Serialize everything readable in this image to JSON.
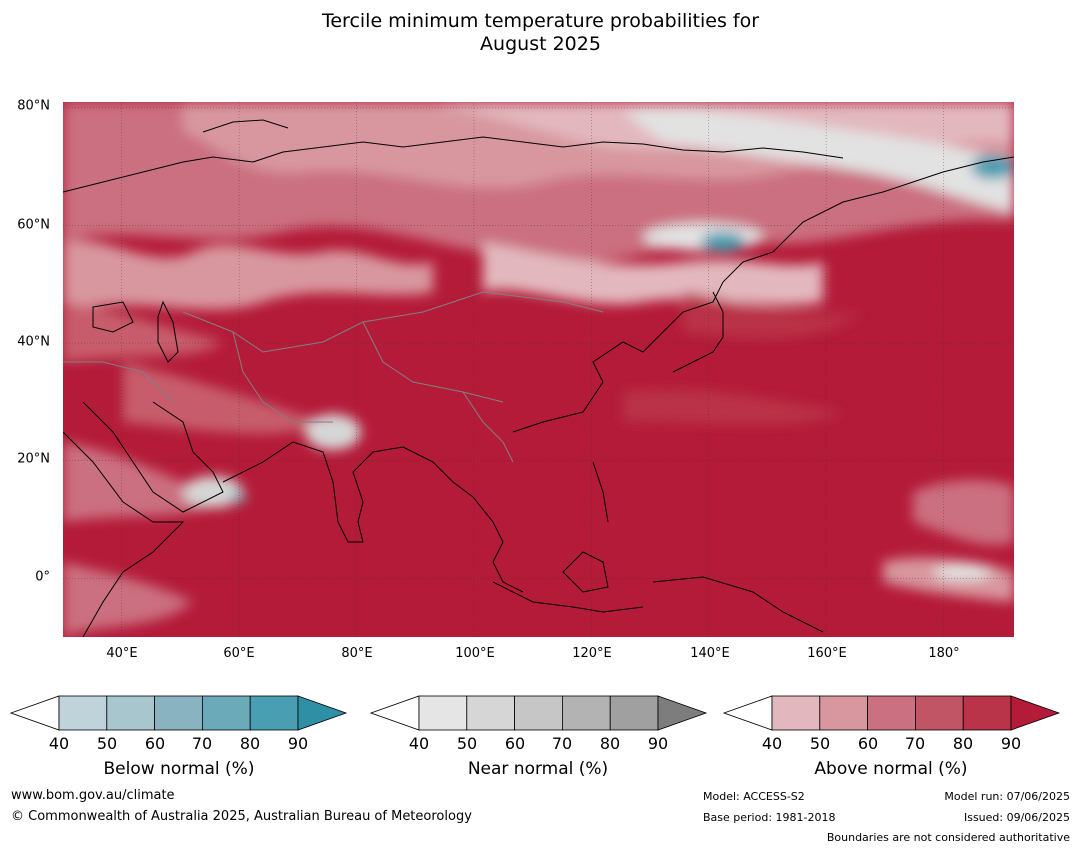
{
  "title": {
    "line1": "Tercile minimum temperature probabilities for",
    "line2": "August 2025"
  },
  "map": {
    "lat_labels": [
      "80°N",
      "60°N",
      "40°N",
      "20°N",
      "0°"
    ],
    "lon_labels": [
      "40°E",
      "60°E",
      "80°E",
      "100°E",
      "120°E",
      "140°E",
      "160°E",
      "180°"
    ],
    "extent": {
      "lon": [
        30,
        192
      ],
      "lat": [
        -10,
        81
      ]
    },
    "colors": {
      "above_90": "#b41b39",
      "above_80": "#ba3146",
      "above_70": "#c75d6c",
      "above_60": "#cb7080",
      "above_50": "#d8979f",
      "above_40": "#e2b8be",
      "near": "#e2e2e2",
      "below_60": "#8ab3c1",
      "below_80": "#4a9eb1",
      "coast": "#000000",
      "border": "#808080"
    }
  },
  "colorbars": [
    {
      "label": "Below normal (%)",
      "ticks": [
        "40",
        "50",
        "60",
        "70",
        "80",
        "90"
      ],
      "colors": [
        "#bfd3da",
        "#a7c6cd",
        "#8ab3c1",
        "#6babb9",
        "#4a9eb1",
        "#2f8fa4"
      ]
    },
    {
      "label": "Near normal (%)",
      "ticks": [
        "40",
        "50",
        "60",
        "70",
        "80",
        "90"
      ],
      "colors": [
        "#e5e5e5",
        "#d6d6d6",
        "#c6c6c6",
        "#b3b3b3",
        "#a0a0a0",
        "#7d7d7d"
      ]
    },
    {
      "label": "Above normal (%)",
      "ticks": [
        "40",
        "50",
        "60",
        "70",
        "80",
        "90"
      ],
      "colors": [
        "#e2b8be",
        "#d8979f",
        "#cb7080",
        "#c25565",
        "#b93349",
        "#b41b39"
      ]
    }
  ],
  "footer": {
    "website": "www.bom.gov.au/climate",
    "copyright": "© Commonwealth of Australia 2025, Australian Bureau of Meteorology",
    "model": "Model: ACCESS-S2",
    "base_period": "Base period: 1981-2018",
    "model_run": "Model run: 07/06/2025",
    "issued": "Issued: 09/06/2025",
    "disclaimer": "Boundaries are not considered authoritative"
  }
}
